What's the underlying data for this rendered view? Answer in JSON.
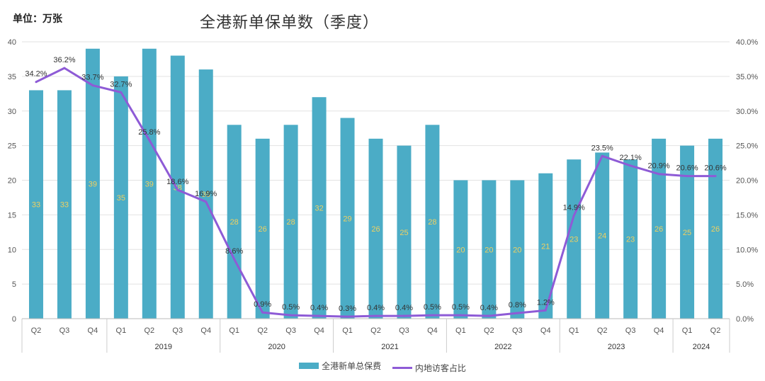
{
  "unit_label": "单位：万张",
  "chart_data": {
    "type": "bar+line",
    "title": "全港新单保单数（季度）",
    "categories": [
      "Q2",
      "Q3",
      "Q4",
      "Q1",
      "Q2",
      "Q3",
      "Q4",
      "Q1",
      "Q2",
      "Q3",
      "Q4",
      "Q1",
      "Q2",
      "Q3",
      "Q4",
      "Q1",
      "Q2",
      "Q3",
      "Q4",
      "Q1",
      "Q2",
      "Q3",
      "Q4",
      "Q1",
      "Q2"
    ],
    "year_groups": [
      {
        "label": "",
        "start": 0,
        "count": 3
      },
      {
        "label": "2019",
        "start": 3,
        "count": 4
      },
      {
        "label": "2020",
        "start": 7,
        "count": 4
      },
      {
        "label": "2021",
        "start": 11,
        "count": 4
      },
      {
        "label": "2022",
        "start": 15,
        "count": 4
      },
      {
        "label": "2023",
        "start": 19,
        "count": 4
      },
      {
        "label": "2024",
        "start": 23,
        "count": 2
      }
    ],
    "bar_series": {
      "name": "全港新单总保费",
      "color": "#4bacc6",
      "values": [
        33,
        33,
        39,
        35,
        39,
        38,
        36,
        28,
        26,
        28,
        32,
        29,
        26,
        25,
        28,
        20,
        20,
        20,
        21,
        23,
        24,
        23,
        26,
        25,
        26
      ],
      "labels": [
        "33",
        "33",
        "39",
        "35",
        "39",
        "38",
        "36",
        "28",
        "26",
        "28",
        "32",
        "29",
        "26",
        "25",
        "28",
        "20",
        "20",
        "20",
        "21",
        "23",
        "24",
        "23",
        "26",
        "25",
        "26"
      ]
    },
    "line_series": {
      "name": "内地访客占比",
      "color": "#8e5bd6",
      "values": [
        34.2,
        36.2,
        33.7,
        32.7,
        25.8,
        18.6,
        16.9,
        8.6,
        0.9,
        0.5,
        0.4,
        0.3,
        0.4,
        0.4,
        0.5,
        0.5,
        0.4,
        0.8,
        1.2,
        14.9,
        23.5,
        22.1,
        20.9,
        20.6,
        20.6
      ],
      "labels": [
        "34.2%",
        "36.2%",
        "33.7%",
        "32.7%",
        "25.8%",
        "18.6%",
        "16.9%",
        "8.6%",
        "0.9%",
        "0.5%",
        "0.4%",
        "0.3%",
        "0.4%",
        "0.4%",
        "0.5%",
        "0.5%",
        "0.4%",
        "0.8%",
        "1.2%",
        "14.9%",
        "23.5%",
        "22.1%",
        "20.9%",
        "20.6%",
        "20.6%"
      ]
    },
    "y_left": {
      "min": 0,
      "max": 40,
      "ticks": [
        "0",
        "5",
        "10",
        "15",
        "20",
        "25",
        "30",
        "35",
        "40"
      ]
    },
    "y_right": {
      "min": 0,
      "max": 40,
      "ticks": [
        "0.0%",
        "5.0%",
        "10.0%",
        "15.0%",
        "20.0%",
        "25.0%",
        "30.0%",
        "35.0%",
        "40.0%"
      ]
    },
    "legend_position": "bottom"
  }
}
